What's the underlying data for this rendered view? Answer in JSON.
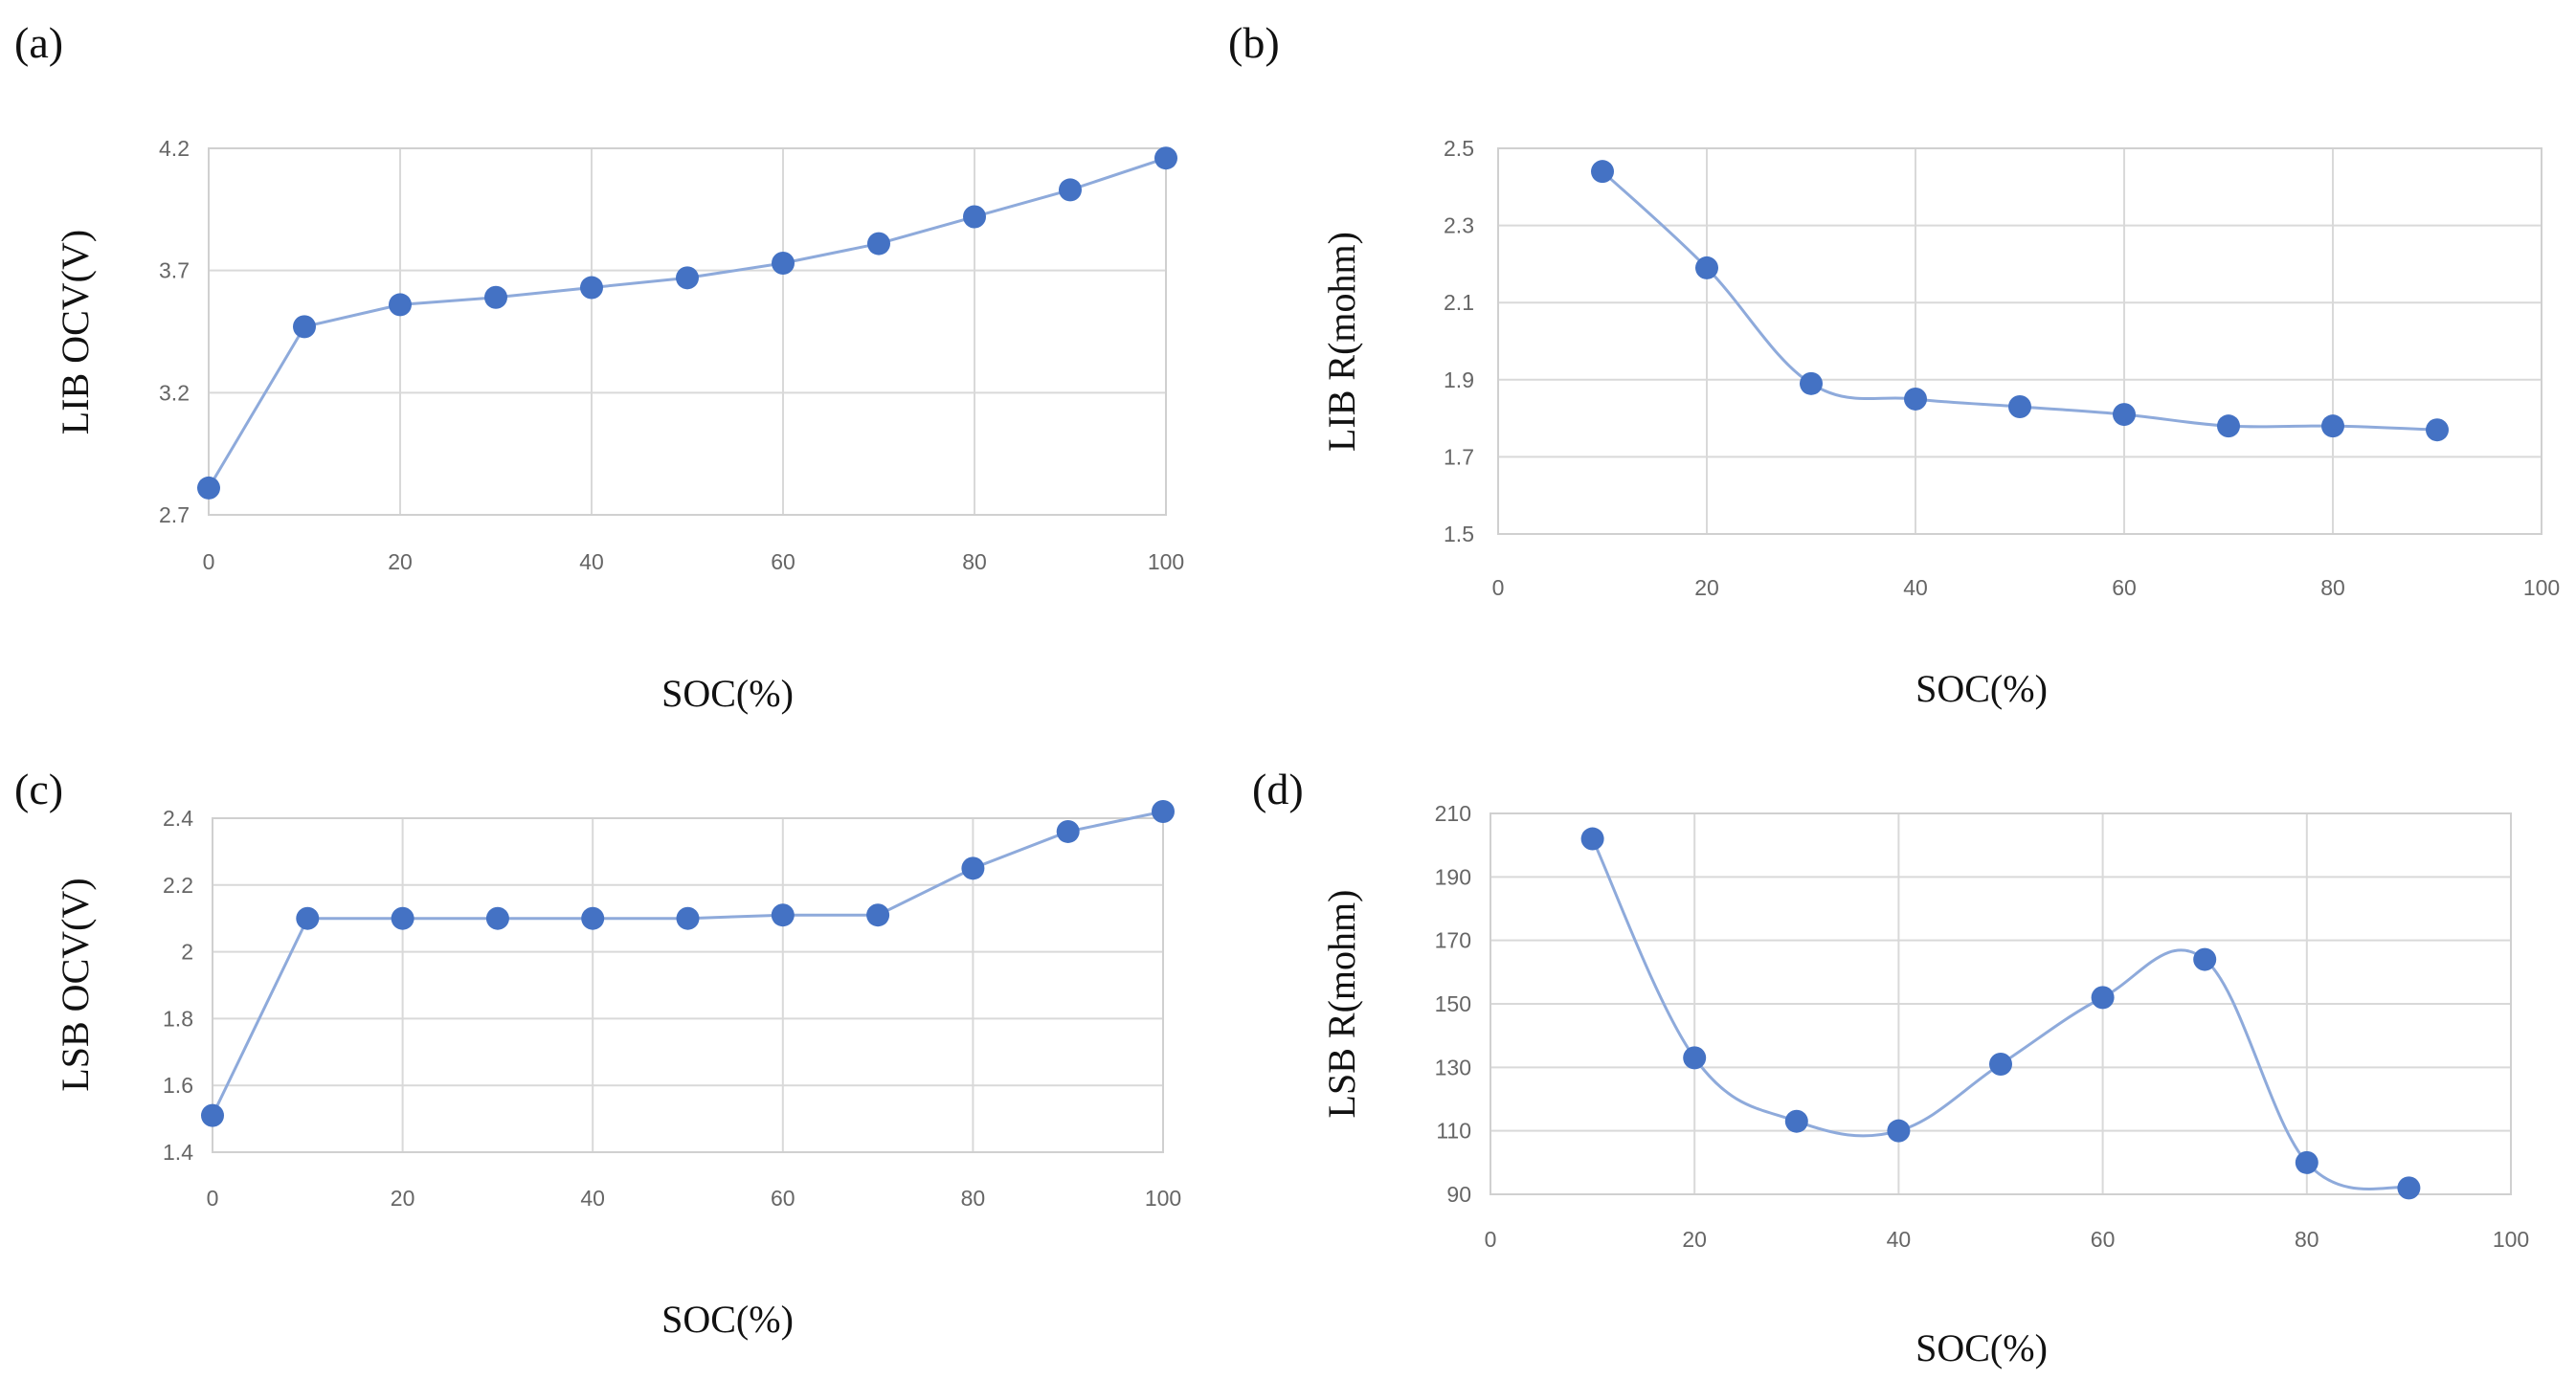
{
  "colors": {
    "series": "#8eaadb",
    "marker": "#4472c4"
  },
  "chart_data": [
    {
      "label": "(a)",
      "type": "line",
      "xlabel": "SOC(%)",
      "ylabel": "LIB OCV(V)",
      "xlim": [
        0,
        100
      ],
      "ylim": [
        2.7,
        4.2
      ],
      "xticks": [
        "0",
        "20",
        "40",
        "60",
        "80",
        "100"
      ],
      "yticks": [
        "2.7",
        "3.2",
        "3.7",
        "4.2"
      ],
      "x": [
        0,
        10,
        20,
        30,
        40,
        50,
        60,
        70,
        80,
        90,
        100
      ],
      "values": [
        2.81,
        3.47,
        3.56,
        3.59,
        3.63,
        3.67,
        3.73,
        3.81,
        3.92,
        4.03,
        4.16
      ],
      "smooth": false
    },
    {
      "label": "(b)",
      "type": "line",
      "xlabel": "SOC(%)",
      "ylabel": "LIB R(mohm)",
      "xlim": [
        0,
        100
      ],
      "ylim": [
        1.5,
        2.5
      ],
      "xticks": [
        "0",
        "20",
        "40",
        "60",
        "80",
        "100"
      ],
      "yticks": [
        "1.5",
        "1.7",
        "1.9",
        "2.1",
        "2.3",
        "2.5"
      ],
      "x": [
        10,
        20,
        30,
        40,
        50,
        60,
        70,
        80,
        90
      ],
      "values": [
        2.44,
        2.19,
        1.89,
        1.85,
        1.83,
        1.81,
        1.78,
        1.78,
        1.77
      ],
      "smooth": true
    },
    {
      "label": "(c)",
      "type": "line",
      "xlabel": "SOC(%)",
      "ylabel": "LSB OCV(V)",
      "xlim": [
        0,
        100
      ],
      "ylim": [
        1.4,
        2.4
      ],
      "xticks": [
        "0",
        "20",
        "40",
        "60",
        "80",
        "100"
      ],
      "yticks": [
        "1.4",
        "1.6",
        "1.8",
        "2",
        "2.2",
        "2.4"
      ],
      "x": [
        0,
        10,
        20,
        30,
        40,
        50,
        60,
        70,
        80,
        90,
        100
      ],
      "values": [
        1.51,
        2.1,
        2.1,
        2.1,
        2.1,
        2.1,
        2.11,
        2.11,
        2.25,
        2.36,
        2.42
      ],
      "smooth": false
    },
    {
      "label": "(d)",
      "type": "line",
      "xlabel": "SOC(%)",
      "ylabel": "LSB R(mohm)",
      "xlim": [
        0,
        100
      ],
      "ylim": [
        90,
        210
      ],
      "xticks": [
        "0",
        "20",
        "40",
        "60",
        "80",
        "100"
      ],
      "yticks": [
        "90",
        "110",
        "130",
        "150",
        "170",
        "190",
        "210"
      ],
      "x": [
        10,
        20,
        30,
        40,
        50,
        60,
        70,
        80,
        90
      ],
      "values": [
        202,
        133,
        113,
        110,
        131,
        152,
        164,
        100,
        92
      ],
      "smooth": true
    }
  ]
}
